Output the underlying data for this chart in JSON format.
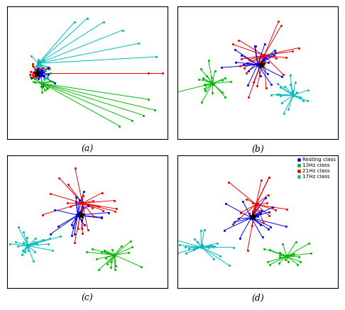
{
  "colors": {
    "blue": "#0000EE",
    "green": "#00BB00",
    "red": "#EE0000",
    "cyan": "#00BBBB"
  },
  "legend_entries": [
    [
      "Resting class",
      "#0000EE"
    ],
    [
      "13Hz class",
      "#00BB00"
    ],
    [
      "21Hz class",
      "#EE0000"
    ],
    [
      "17Hz class",
      "#00BBBB"
    ]
  ],
  "subplot_labels": [
    "(a)",
    "(b)",
    "(c)",
    "(d)"
  ]
}
